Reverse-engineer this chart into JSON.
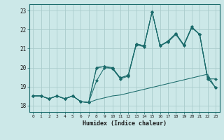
{
  "xlabel": "Humidex (Indice chaleur)",
  "background_color": "#cce8e8",
  "grid_color": "#aacccc",
  "line_color": "#1a6b6b",
  "xlim": [
    -0.5,
    23.5
  ],
  "ylim": [
    17.65,
    23.35
  ],
  "yticks": [
    18,
    19,
    20,
    21,
    22,
    23
  ],
  "xticks": [
    0,
    1,
    2,
    3,
    4,
    5,
    6,
    7,
    8,
    9,
    10,
    11,
    12,
    13,
    14,
    15,
    16,
    17,
    18,
    19,
    20,
    21,
    22,
    23
  ],
  "series": {
    "line_flat": [
      18.5,
      18.5,
      18.35,
      18.5,
      18.35,
      18.5,
      18.2,
      18.15,
      18.3,
      18.4,
      18.5,
      18.55,
      18.65,
      18.75,
      18.85,
      18.95,
      19.05,
      19.15,
      19.25,
      19.35,
      19.45,
      19.55,
      19.65,
      18.9
    ],
    "line_a": [
      18.5,
      18.5,
      18.35,
      18.5,
      18.35,
      18.5,
      18.2,
      18.15,
      19.3,
      20.0,
      19.95,
      19.4,
      19.55,
      21.2,
      21.1,
      22.95,
      21.15,
      21.35,
      21.75,
      21.15,
      22.1,
      21.75,
      19.4,
      19.4
    ],
    "line_b": [
      18.5,
      18.5,
      18.35,
      18.5,
      18.35,
      18.5,
      18.2,
      18.15,
      20.0,
      20.05,
      19.95,
      19.45,
      19.6,
      21.25,
      21.15,
      22.95,
      21.15,
      21.4,
      21.8,
      21.2,
      22.15,
      21.75,
      19.45,
      18.95
    ],
    "line_c": [
      18.5,
      18.5,
      18.35,
      18.5,
      18.35,
      18.5,
      18.2,
      18.15,
      20.0,
      20.05,
      20.0,
      19.45,
      19.6,
      21.25,
      21.15,
      22.95,
      21.15,
      21.4,
      21.8,
      21.2,
      22.15,
      21.75,
      19.45,
      18.95
    ]
  }
}
